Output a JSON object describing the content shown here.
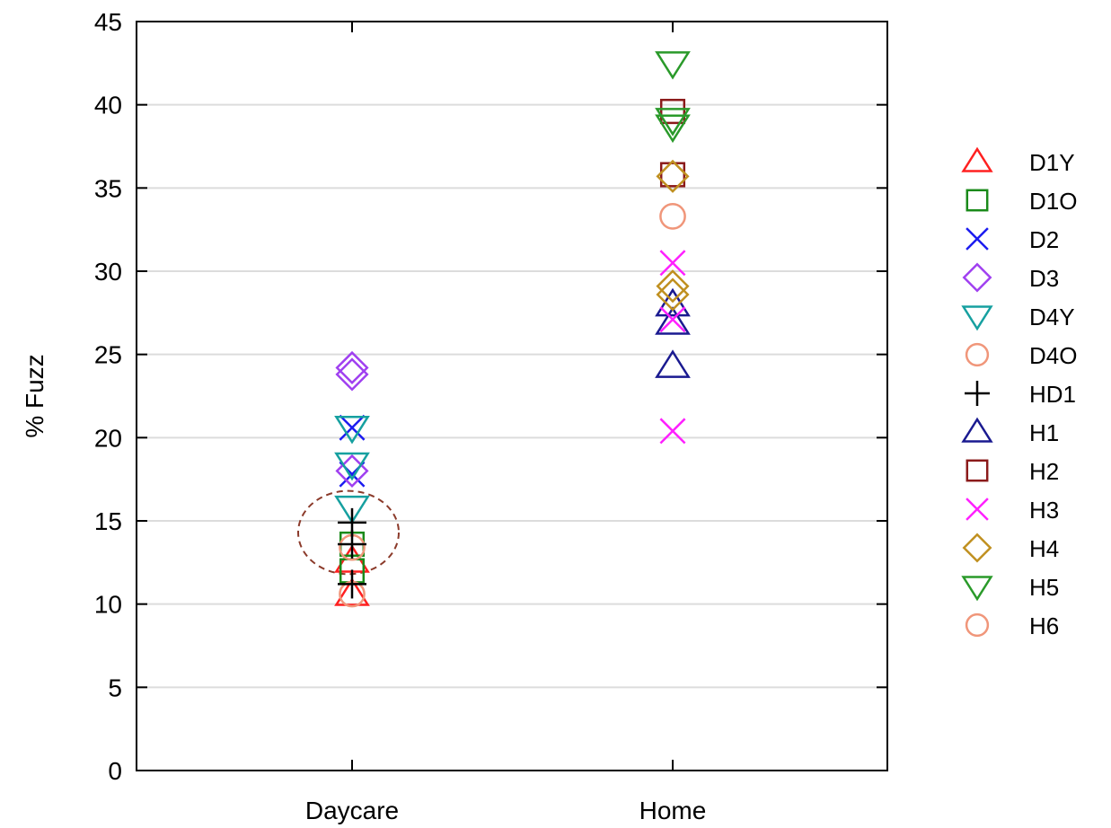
{
  "chart_data": {
    "type": "scatter",
    "title": "",
    "xlabel": "",
    "ylabel": "% Fuzz",
    "categories": [
      "Daycare",
      "Home"
    ],
    "ylim": [
      0,
      45
    ],
    "yticks": [
      0,
      5,
      10,
      15,
      20,
      25,
      30,
      35,
      40,
      45
    ],
    "grid": "horizontal",
    "legend_position": "right",
    "annotation": {
      "type": "dashed-ellipse",
      "category": "Daycare",
      "y_center": 14.3,
      "y_range": [
        11.8,
        16.8
      ],
      "color": "#8b3a2a"
    },
    "series": [
      {
        "name": "D1Y",
        "marker": "triangle-up",
        "color": "#ff2020",
        "points": [
          {
            "x": "Daycare",
            "y": 12.6
          },
          {
            "x": "Daycare",
            "y": 10.6
          }
        ]
      },
      {
        "name": "D1O",
        "marker": "square",
        "color": "#1a8a1a",
        "points": [
          {
            "x": "Daycare",
            "y": 13.6
          },
          {
            "x": "Daycare",
            "y": 12.0
          }
        ]
      },
      {
        "name": "D2",
        "marker": "x",
        "color": "#1c1cf0",
        "points": [
          {
            "x": "Daycare",
            "y": 20.6
          },
          {
            "x": "Daycare",
            "y": 17.8
          }
        ]
      },
      {
        "name": "D3",
        "marker": "diamond",
        "color": "#a040f0",
        "points": [
          {
            "x": "Daycare",
            "y": 24.2
          },
          {
            "x": "Daycare",
            "y": 23.8
          },
          {
            "x": "Daycare",
            "y": 18.0
          }
        ]
      },
      {
        "name": "D4Y",
        "marker": "triangle-down",
        "color": "#16a0a0",
        "points": [
          {
            "x": "Daycare",
            "y": 20.6
          },
          {
            "x": "Daycare",
            "y": 18.4
          },
          {
            "x": "Daycare",
            "y": 15.8
          }
        ]
      },
      {
        "name": "D4O",
        "marker": "circle",
        "color": "#f0967a",
        "points": [
          {
            "x": "Daycare",
            "y": 10.6
          },
          {
            "x": "Daycare",
            "y": 13.4
          }
        ]
      },
      {
        "name": "HD1",
        "marker": "plus",
        "color": "#000000",
        "points": [
          {
            "x": "Daycare",
            "y": 14.9
          },
          {
            "x": "Daycare",
            "y": 13.6
          },
          {
            "x": "Daycare",
            "y": 11.2
          }
        ]
      },
      {
        "name": "H1",
        "marker": "triangle-up",
        "color": "#1a1a90",
        "points": [
          {
            "x": "Home",
            "y": 28.0
          },
          {
            "x": "Home",
            "y": 26.9
          },
          {
            "x": "Home",
            "y": 24.3
          }
        ]
      },
      {
        "name": "H2",
        "marker": "square",
        "color": "#8b1a1a",
        "points": [
          {
            "x": "Home",
            "y": 39.6
          },
          {
            "x": "Home",
            "y": 35.8
          }
        ]
      },
      {
        "name": "H3",
        "marker": "x",
        "color": "#ff20ff",
        "points": [
          {
            "x": "Home",
            "y": 30.5
          },
          {
            "x": "Home",
            "y": 27.1
          },
          {
            "x": "Home",
            "y": 20.4
          }
        ]
      },
      {
        "name": "H4",
        "marker": "diamond",
        "color": "#c09020",
        "points": [
          {
            "x": "Home",
            "y": 35.7
          },
          {
            "x": "Home",
            "y": 29.1
          },
          {
            "x": "Home",
            "y": 28.6
          }
        ]
      },
      {
        "name": "H5",
        "marker": "triangle-down",
        "color": "#2a9a2a",
        "points": [
          {
            "x": "Home",
            "y": 42.5
          },
          {
            "x": "Home",
            "y": 39.1
          },
          {
            "x": "Home",
            "y": 38.7
          }
        ]
      },
      {
        "name": "H6",
        "marker": "circle",
        "color": "#f0967a",
        "points": [
          {
            "x": "Home",
            "y": 33.3
          }
        ]
      }
    ]
  }
}
